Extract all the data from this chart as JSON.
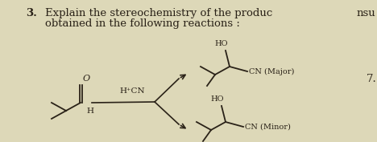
{
  "background_color": "#ddd8b8",
  "title_number": "3.",
  "title_text": "Explain the stereochemistry of the produc",
  "title_text2": "obtained in the following reactions :",
  "right_text": "nsu",
  "number_7": "7.",
  "reagent": "H⁺CN",
  "label_major": "CN (Major)",
  "label_minor": "CN (Minor)",
  "label_ho1": "HO",
  "label_ho2": "HO",
  "text_color": "#2a2218",
  "font_size_title": 9.5,
  "font_size_label": 7.5,
  "font_size_reagent": 7.5,
  "bg_gradient_top": "#cec8a0",
  "bg_gradient_bot": "#d8d4b4"
}
